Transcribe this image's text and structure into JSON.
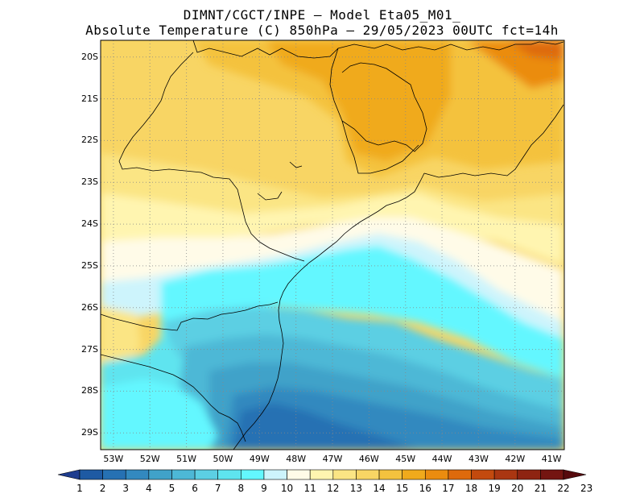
{
  "header": {
    "line1": "DIMNT/CGCT/INPE –  Model Eta05_M01_",
    "line2": "Absolute Temperature (C) 850hPa –  29/05/2023 00UTC fct=14h"
  },
  "map": {
    "lat_labels": [
      "20S",
      "21S",
      "22S",
      "23S",
      "24S",
      "25S",
      "26S",
      "27S",
      "28S",
      "29S"
    ],
    "lon_labels": [
      "53W",
      "52W",
      "51W",
      "50W",
      "49W",
      "48W",
      "47W",
      "46W",
      "45W",
      "44W",
      "43W",
      "42W",
      "41W"
    ],
    "lat_values": [
      -20,
      -21,
      -22,
      -23,
      -24,
      -25,
      -26,
      -27,
      -28,
      -29
    ],
    "lon_values": [
      -53,
      -52,
      -51,
      -50,
      -49,
      -48,
      -47,
      -46,
      -45,
      -44,
      -43,
      -42,
      -41
    ]
  },
  "colorbar": {
    "labels": [
      "1",
      "2",
      "3",
      "4",
      "5",
      "6",
      "7",
      "8",
      "9",
      "10",
      "11",
      "12",
      "13",
      "14",
      "15",
      "16",
      "17",
      "18",
      "19",
      "20",
      "21",
      "22",
      "23"
    ],
    "colors": [
      "#1f3d8f",
      "#1e5aa3",
      "#2671b3",
      "#3389bf",
      "#40a2c9",
      "#4db8d6",
      "#5ccfe3",
      "#5ee4ef",
      "#63f7ff",
      "#cdf4fc",
      "#fffbe8",
      "#fff5b0",
      "#fbe584",
      "#f8d564",
      "#f4c23e",
      "#f0aa1c",
      "#eb8c0f",
      "#de6a0c",
      "#c34a0e",
      "#aa3611",
      "#8e2412",
      "#741511",
      "#560a0d"
    ]
  }
}
